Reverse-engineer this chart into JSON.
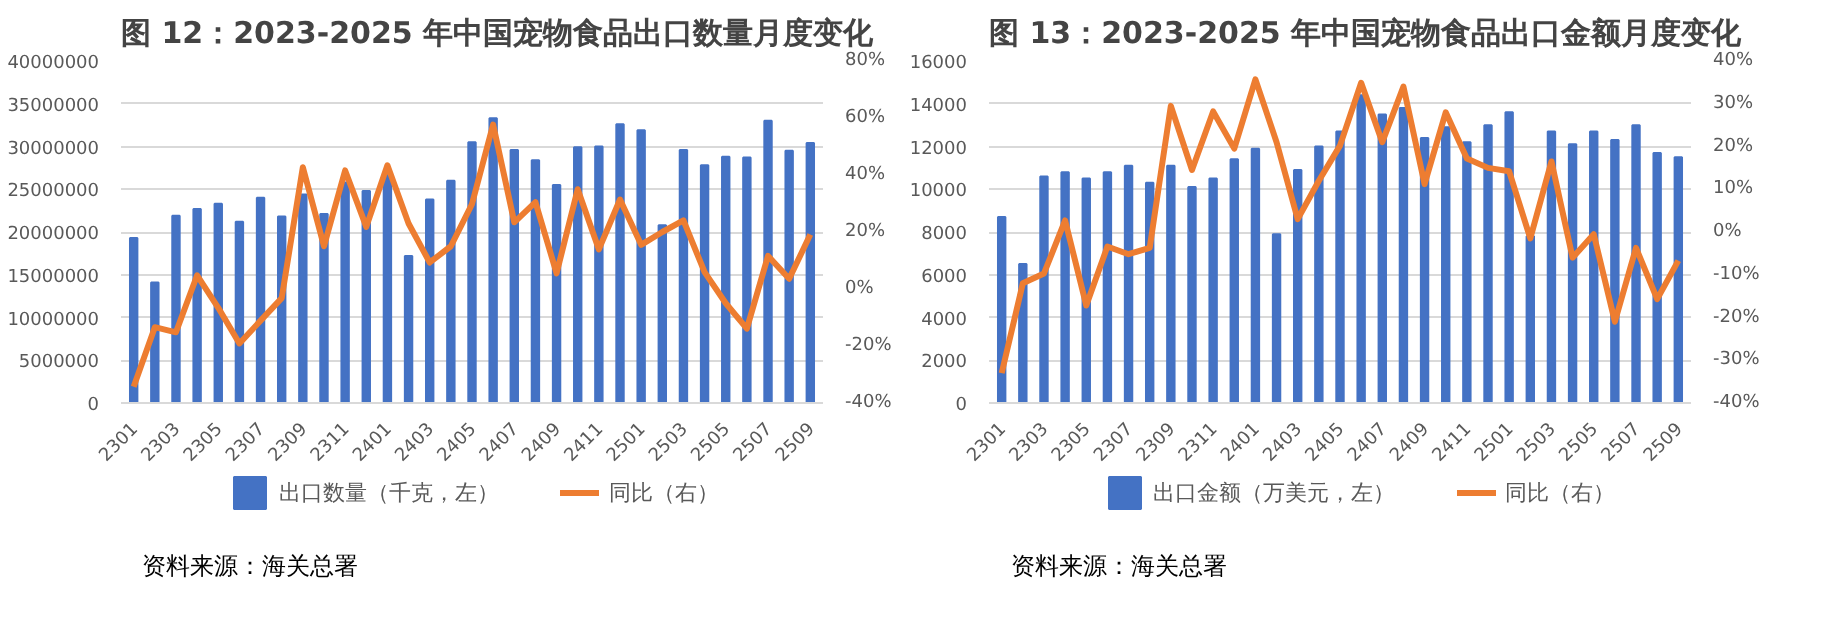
{
  "chart_data": [
    {
      "type": "bar",
      "title": "图 12：2023-2025 年中国宠物食品出口数量月度变化",
      "categories": [
        "2301",
        null,
        "2303",
        null,
        "2305",
        null,
        "2307",
        null,
        "2309",
        null,
        "2311",
        null,
        "2401",
        null,
        "2403",
        null,
        "2405",
        null,
        "2407",
        null,
        "2409",
        null,
        "2411",
        null,
        "2501",
        null,
        "2503",
        null,
        "2505",
        null,
        "2507",
        null,
        "2509"
      ],
      "series": [
        {
          "name": "出口数量（千克，左）",
          "color": "#4472c4",
          "values": [
            19300000,
            14100000,
            21900000,
            22700000,
            23300000,
            21200000,
            24000000,
            21800000,
            24400000,
            22100000,
            25800000,
            24800000,
            26800000,
            17200000,
            23800000,
            26000000,
            30500000,
            33300000,
            29600000,
            28400000,
            25500000,
            29900000,
            30000000,
            32600000,
            31900000,
            20800000,
            29600000,
            27800000,
            28800000,
            28700000,
            33000000,
            29500000,
            30400000
          ]
        },
        {
          "name": "同比（右）",
          "type": "line",
          "axis": "y2",
          "color": "#ed7d31",
          "values": [
            -34.3,
            -13.4,
            -15.2,
            4.8,
            -6.6,
            -19.1,
            -11.1,
            -3.2,
            42.7,
            15.0,
            41.6,
            21.8,
            43.4,
            23.0,
            9.3,
            15.0,
            29.8,
            57.7,
            23.4,
            30.5,
            5.5,
            35.0,
            13.9,
            31.4,
            15.5,
            20.0,
            24.1,
            5.9,
            -5.0,
            -13.9,
            11.6,
            3.6,
            19.1
          ]
        }
      ],
      "ylim": [
        0,
        40000000
      ],
      "yticks": [
        0,
        5000000,
        10000000,
        15000000,
        20000000,
        25000000,
        30000000,
        35000000,
        40000000
      ],
      "y2lim": [
        -40,
        80
      ],
      "y2ticks": [
        {
          "value": -40,
          "label": "-40%"
        },
        {
          "value": -20,
          "label": "-20%"
        },
        {
          "value": 0,
          "label": "0%"
        },
        {
          "value": 20,
          "label": "20%"
        },
        {
          "value": 40,
          "label": "40%"
        },
        {
          "value": 60,
          "label": "60%"
        },
        {
          "value": 80,
          "label": "80%"
        }
      ],
      "grid": "y",
      "legend": "bottom",
      "annotations": [
        "资料来源：海关总署"
      ]
    },
    {
      "type": "bar",
      "title": "图 13：2023-2025 年中国宠物食品出口金额月度变化",
      "categories": [
        "2301",
        null,
        "2303",
        null,
        "2305",
        null,
        "2307",
        null,
        "2309",
        null,
        "2311",
        null,
        "2401",
        null,
        "2403",
        null,
        "2405",
        null,
        "2407",
        null,
        "2409",
        null,
        "2411",
        null,
        "2501",
        null,
        "2503",
        null,
        "2505",
        null,
        "2507",
        null,
        "2509"
      ],
      "series": [
        {
          "name": "出口金额（万美元，左）",
          "color": "#4472c4",
          "values": [
            8700,
            6500,
            10600,
            10800,
            10500,
            10800,
            11100,
            10300,
            11100,
            10100,
            10500,
            11400,
            11900,
            7900,
            10900,
            12000,
            12700,
            14400,
            13500,
            13800,
            12400,
            12900,
            12200,
            13000,
            13600,
            7800,
            12700,
            12100,
            12700,
            12300,
            13000,
            11700,
            11500
          ]
        },
        {
          "name": "同比（右）",
          "type": "line",
          "axis": "y2",
          "color": "#ed7d31",
          "values": [
            -33.0,
            -12.0,
            -9.7,
            2.7,
            -17.2,
            -3.4,
            -5.2,
            -3.7,
            29.5,
            14.5,
            28.2,
            19.5,
            35.7,
            21.0,
            3.0,
            12.0,
            20.2,
            34.9,
            21.0,
            34.0,
            11.2,
            28.0,
            17.2,
            15.0,
            14.2,
            -1.5,
            16.5,
            -6.0,
            -0.5,
            -21.0,
            -3.7,
            -15.7,
            -6.7
          ]
        }
      ],
      "ylim": [
        0,
        16000
      ],
      "yticks": [
        0,
        2000,
        4000,
        6000,
        8000,
        10000,
        12000,
        14000,
        16000
      ],
      "y2lim": [
        -40,
        40
      ],
      "y2ticks": [
        {
          "value": -40,
          "label": "-40%"
        },
        {
          "value": -30,
          "label": "-30%"
        },
        {
          "value": -20,
          "label": "-20%"
        },
        {
          "value": -10,
          "label": "-10%"
        },
        {
          "value": 0,
          "label": "0%"
        },
        {
          "value": 10,
          "label": "10%"
        },
        {
          "value": 20,
          "label": "20%"
        },
        {
          "value": 30,
          "label": "30%"
        },
        {
          "value": 40,
          "label": "40%"
        }
      ],
      "grid": "y",
      "legend": "bottom",
      "annotations": [
        "资料来源：海关总署"
      ]
    }
  ]
}
